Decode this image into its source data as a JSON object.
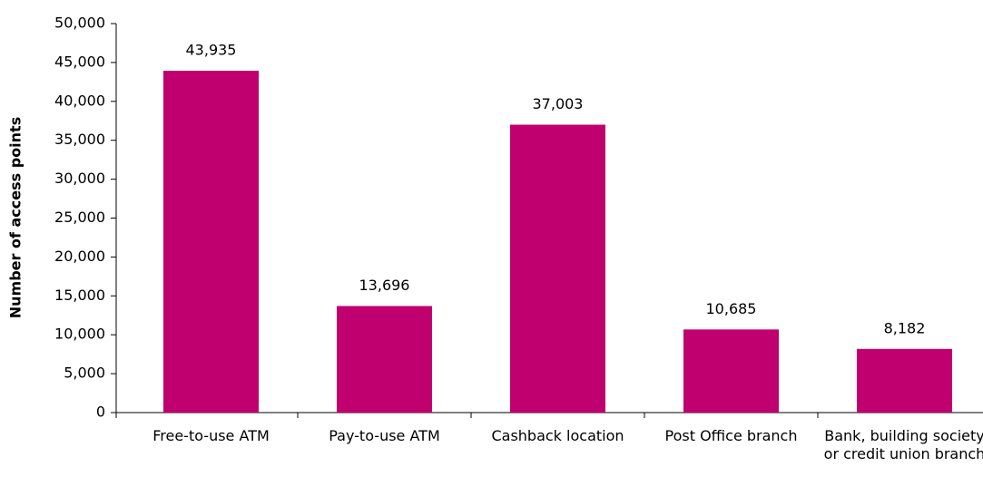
{
  "chart_data": {
    "type": "bar",
    "ylabel": "Number of access points",
    "categories": [
      "Free-to-use ATM",
      "Pay-to-use ATM",
      "Cashback location",
      "Post Office branch",
      "Bank, building society or credit union branch"
    ],
    "values": [
      43935,
      13696,
      37003,
      10685,
      8182
    ],
    "value_labels": [
      "43,935",
      "13,696",
      "37,003",
      "10,685",
      "8,182"
    ],
    "color": "#c0006e",
    "ylim": [
      0,
      50000
    ],
    "yticks": [
      0,
      {
        "value": 5000,
        "label": "5,000"
      },
      {
        "value": 10000,
        "label": "10,000"
      },
      {
        "value": 15000,
        "label": "15,000"
      },
      {
        "value": 20000,
        "label": "20,000"
      },
      {
        "value": 25000,
        "label": "25,000"
      },
      {
        "value": 30000,
        "label": "30,000"
      },
      {
        "value": 35000,
        "label": "35,000"
      },
      {
        "value": 40000,
        "label": "40,000"
      },
      {
        "value": 45000,
        "label": "45,000"
      },
      {
        "value": 50000,
        "label": "50,000"
      }
    ],
    "grid": false
  }
}
